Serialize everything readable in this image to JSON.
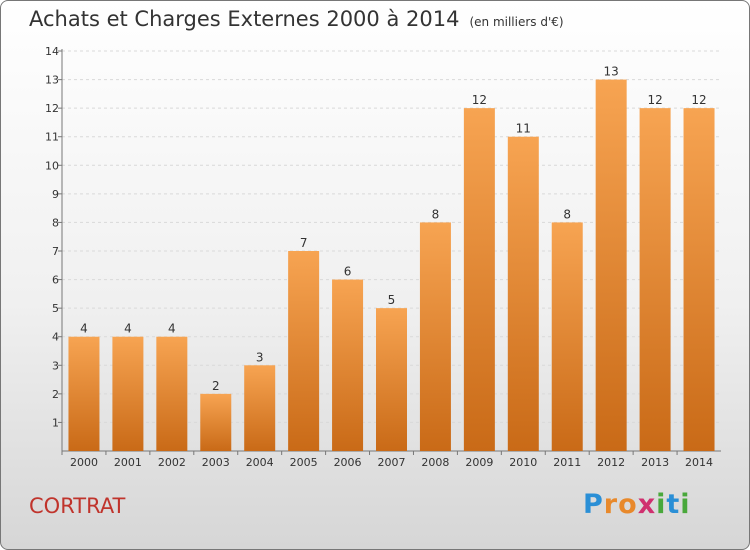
{
  "title": "Achats et Charges Externes 2000 à 2014",
  "unit": "(en milliers d'€)",
  "commune": "CORTRAT",
  "logo": {
    "text": "Proxiti",
    "letters": [
      "P",
      "r",
      "o",
      "x",
      "i",
      "t",
      "i"
    ],
    "colors": [
      "#2a8fd6",
      "#e8892b",
      "#e8892b",
      "#d0306f",
      "#49a83b",
      "#2a8fd6",
      "#49a83b"
    ]
  },
  "colors": {
    "bar_top": "#f7a452",
    "bar_bottom": "#c96a17",
    "grid": "#d9d9d9",
    "axis": "#777777"
  },
  "chart_data": {
    "type": "bar",
    "categories": [
      "2000",
      "2001",
      "2002",
      "2003",
      "2004",
      "2005",
      "2006",
      "2007",
      "2008",
      "2009",
      "2010",
      "2011",
      "2012",
      "2013",
      "2014"
    ],
    "values": [
      4,
      4,
      4,
      2,
      3,
      7,
      6,
      5,
      8,
      12,
      11,
      8,
      13,
      12,
      12
    ],
    "ylim": [
      0,
      14
    ],
    "yticks": [
      1,
      2,
      3,
      4,
      5,
      6,
      7,
      8,
      9,
      10,
      11,
      12,
      13,
      14
    ],
    "grid": "horizontal dashed",
    "legend": "none"
  }
}
